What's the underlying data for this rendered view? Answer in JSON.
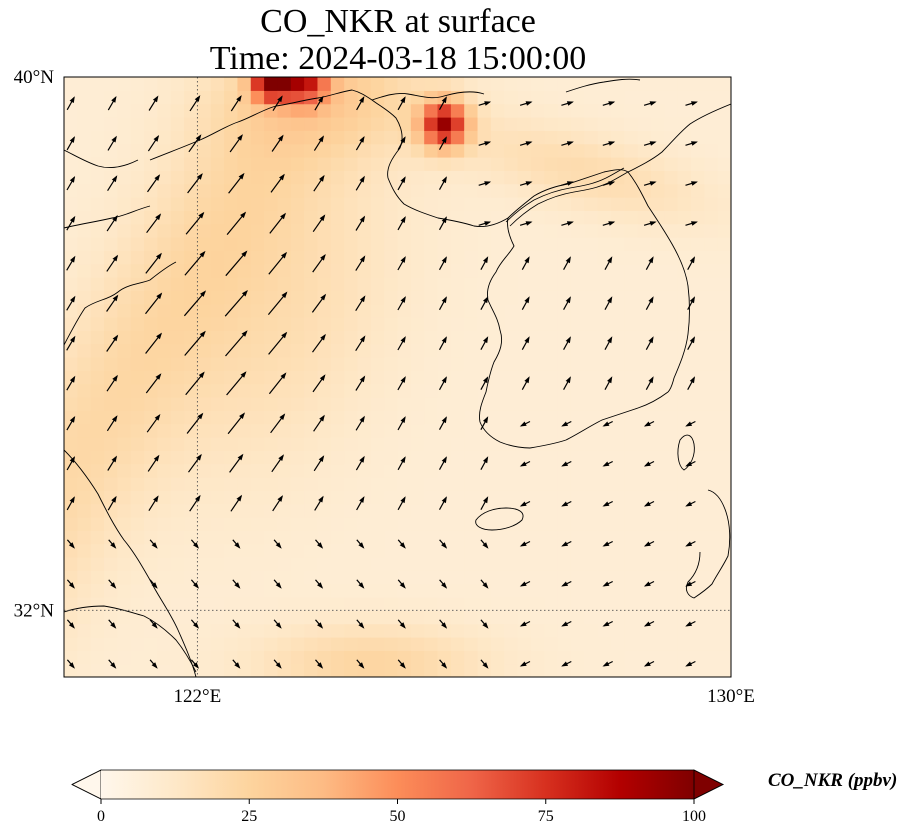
{
  "title": {
    "line1": "CO_NKR at surface",
    "line2": "Time: 2024-03-18 15:00:00"
  },
  "map": {
    "extent": {
      "lon_min": 120.0,
      "lon_max": 130.0,
      "lat_min": 31.0,
      "lat_max": 40.0
    },
    "gridlines": [
      {
        "type": "lon",
        "value": 122,
        "label": "122°E"
      },
      {
        "type": "lon",
        "value": 130,
        "label": "130°E"
      },
      {
        "type": "lat",
        "value": 32,
        "label": "32°N"
      },
      {
        "type": "lat",
        "value": 40,
        "label": "40°N"
      }
    ],
    "gridline_style": "dotted",
    "field": "CO_NKR",
    "colormap": "OrRd",
    "background_concentration_ppbv": 8,
    "plumes": [
      {
        "name": "north-west hotspot",
        "lon": 123.1,
        "lat": 39.9,
        "peak_ppbv": 95
      },
      {
        "name": "north hotspot",
        "lon": 125.7,
        "lat": 39.3,
        "peak_ppbv": 90
      },
      {
        "name": "central belt",
        "lon": 122.8,
        "lat": 36.2,
        "peak_ppbv": 22
      },
      {
        "name": "north-east belt",
        "lon": 127.5,
        "lat": 38.6,
        "peak_ppbv": 25
      },
      {
        "name": "southern belt",
        "lon": 124.5,
        "lat": 31.4,
        "peak_ppbv": 28
      }
    ],
    "wind_vectors_shown": true
  },
  "colorbar": {
    "title": "CO_NKR (ppbv)",
    "min": 0,
    "max": 100,
    "extend": "both",
    "ticks": [
      "0",
      "25",
      "50",
      "75",
      "100"
    ],
    "stops": [
      "#fff7ec",
      "#fee8c8",
      "#fdd49e",
      "#fdbb84",
      "#fc8d59",
      "#ef6548",
      "#d7301f",
      "#b30000",
      "#7f0000"
    ]
  }
}
